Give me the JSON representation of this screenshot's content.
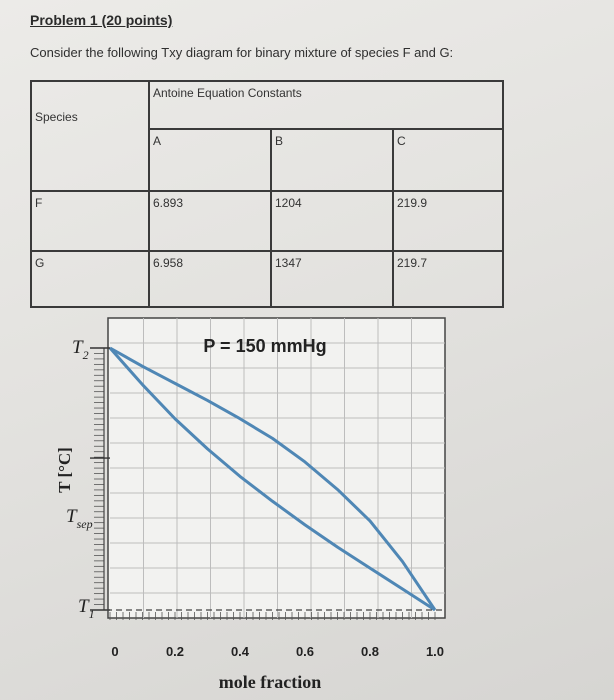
{
  "problem": {
    "title": "Problem 1 (20 points)",
    "prompt": "Consider the following Txy diagram for binary mixture of species F and G:"
  },
  "table": {
    "species_header": "Species",
    "constants_header": "Antoine Equation Constants",
    "col_a": "A",
    "col_b": "B",
    "col_c": "C",
    "rows": [
      {
        "species": "F",
        "a": "6.893",
        "b": "1204",
        "c": "219.9"
      },
      {
        "species": "G",
        "a": "6.958",
        "b": "1347",
        "c": "219.7"
      }
    ]
  },
  "chart_data": {
    "type": "line",
    "title": "P = 150 mmHg",
    "xlabel": "mole fraction",
    "ylabel": "T [°C]",
    "xlim": [
      0,
      1
    ],
    "x_ticks": [
      "0",
      "0.2",
      "0.4",
      "0.6",
      "0.8",
      "1.0"
    ],
    "y_tick_labels": {
      "top": "T",
      "top_sub": "2",
      "mid": "T",
      "mid_sub": "sep",
      "bottom": "T",
      "bottom_sub": "1"
    },
    "y_levels": {
      "T2": 1.0,
      "Tsep": 0.58,
      "T1": 0.0
    },
    "series": [
      {
        "x": [
          0,
          0.1,
          0.2,
          0.3,
          0.4,
          0.5,
          0.6,
          0.7,
          0.8,
          0.9,
          1.0
        ],
        "y": [
          1.0,
          0.93,
          0.865,
          0.8,
          0.73,
          0.655,
          0.565,
          0.46,
          0.34,
          0.185,
          0.0
        ]
      },
      {
        "x": [
          0,
          0.1,
          0.2,
          0.3,
          0.4,
          0.5,
          0.6,
          0.7,
          0.8,
          0.9,
          1.0
        ],
        "y": [
          1.0,
          0.86,
          0.73,
          0.615,
          0.51,
          0.415,
          0.325,
          0.24,
          0.16,
          0.08,
          0.0
        ]
      }
    ],
    "line_color": "#4f87b5",
    "grid": true
  }
}
